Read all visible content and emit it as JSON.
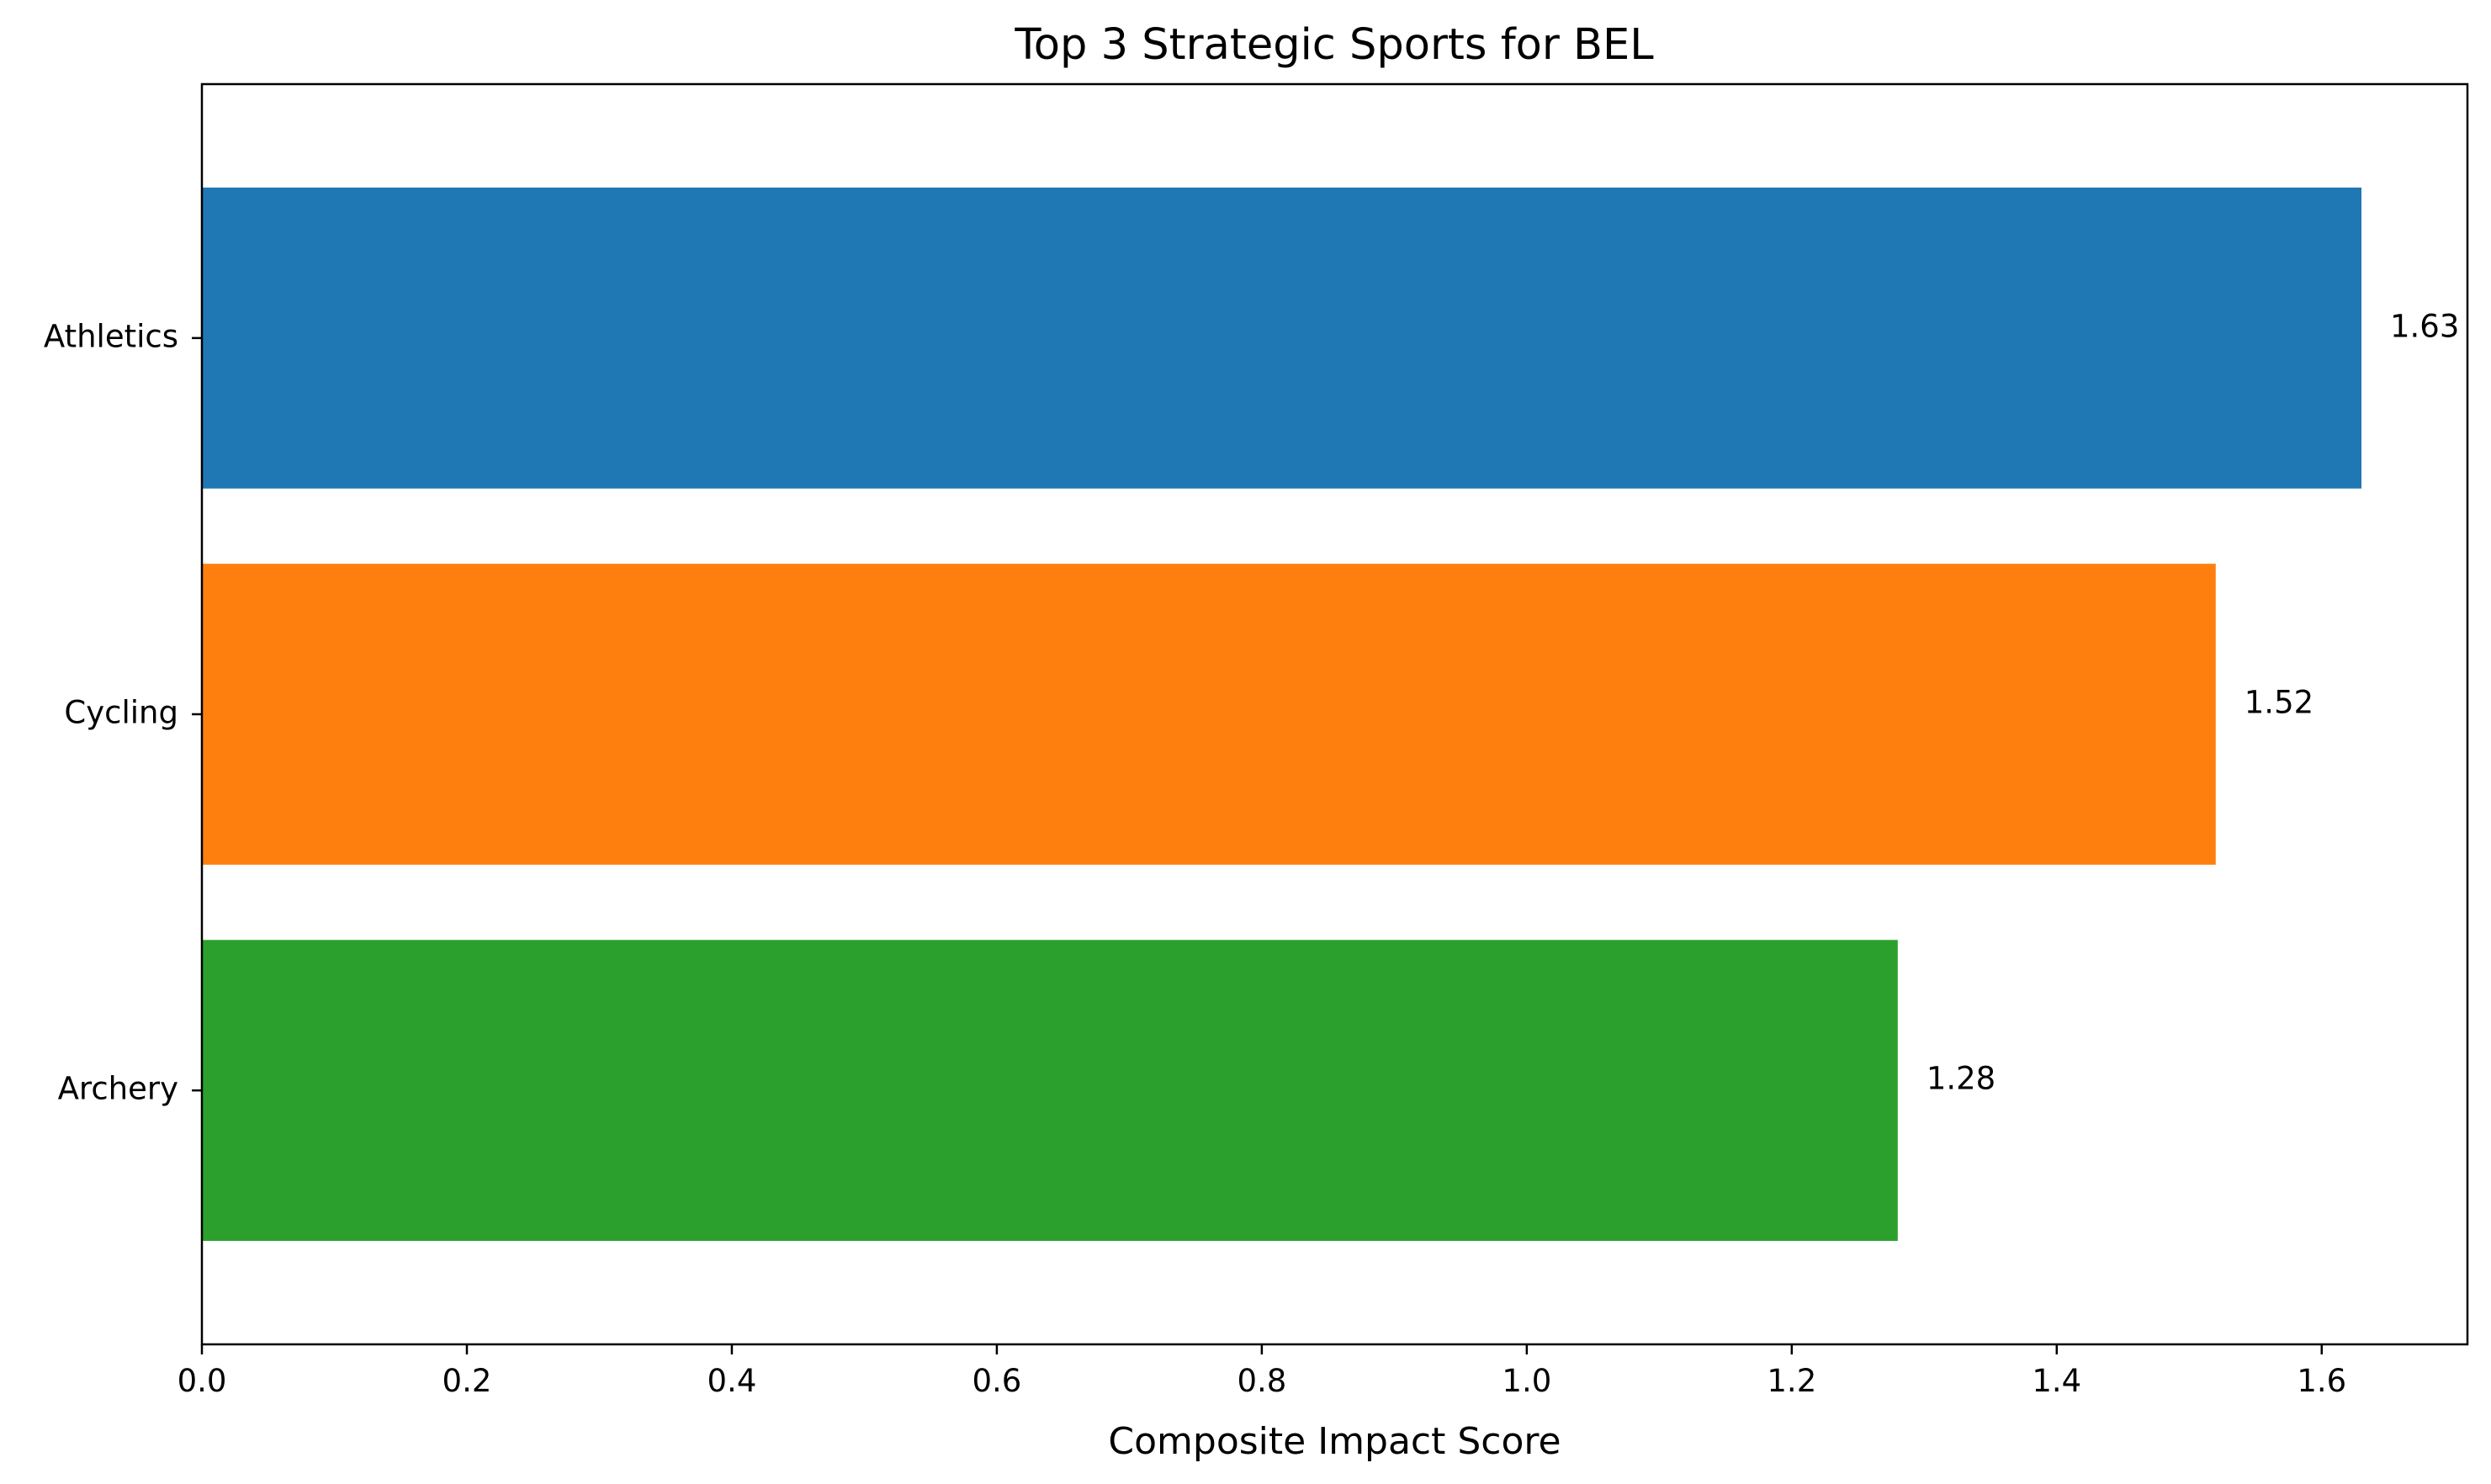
{
  "chart_data": {
    "type": "bar",
    "orientation": "horizontal",
    "title": "Top 3 Strategic Sports for BEL",
    "xlabel": "Composite Impact Score",
    "ylabel": "",
    "categories": [
      "Athletics",
      "Cycling",
      "Archery"
    ],
    "values": [
      1.63,
      1.52,
      1.28
    ],
    "value_labels": [
      "1.63",
      "1.52",
      "1.28"
    ],
    "colors": [
      "#1f77b4",
      "#ff7f0e",
      "#2ca02c"
    ],
    "xlim": [
      0,
      1.71
    ],
    "xticks": [
      0.0,
      0.2,
      0.4,
      0.6,
      0.8,
      1.0,
      1.2,
      1.4,
      1.6
    ],
    "xtick_labels": [
      "0.0",
      "0.2",
      "0.4",
      "0.6",
      "0.8",
      "1.0",
      "1.2",
      "1.4",
      "1.6"
    ],
    "grid": false,
    "legend": "none"
  }
}
